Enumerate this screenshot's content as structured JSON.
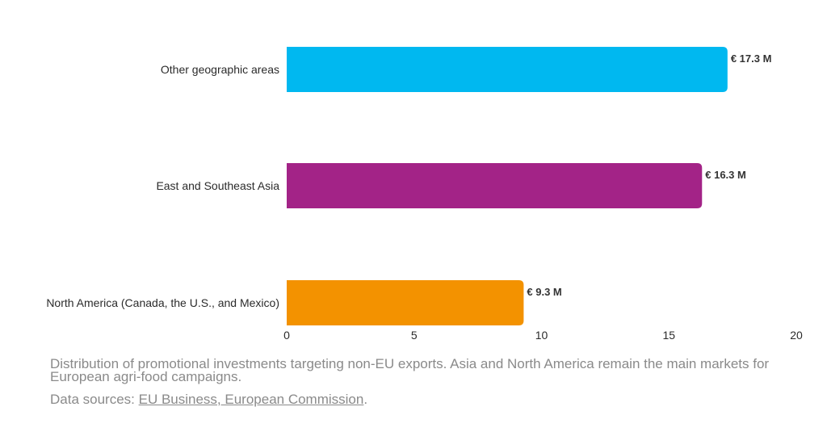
{
  "chart_data": {
    "type": "bar",
    "orientation": "horizontal",
    "categories": [
      "Other geographic areas",
      "East and Southeast Asia",
      "North America (Canada, the U.S., and Mexico)"
    ],
    "values": [
      17.3,
      16.3,
      9.3
    ],
    "value_labels": [
      "€ 17.3 M",
      "€ 16.3 M",
      "€ 9.3 M"
    ],
    "colors": [
      "#00b8f0",
      "#a32387",
      "#f39200"
    ],
    "xlim": [
      0,
      20
    ],
    "xticks": [
      0,
      5,
      10,
      15,
      20
    ],
    "grid": false,
    "legend": "none"
  },
  "caption": {
    "text": "Distribution of promotional investments targeting non-EU exports. Asia and North America remain the main markets for European agri-food campaigns.",
    "sources_prefix": "Data sources: ",
    "sources_link": "EU Business, European Commission",
    "sources_suffix": "."
  }
}
